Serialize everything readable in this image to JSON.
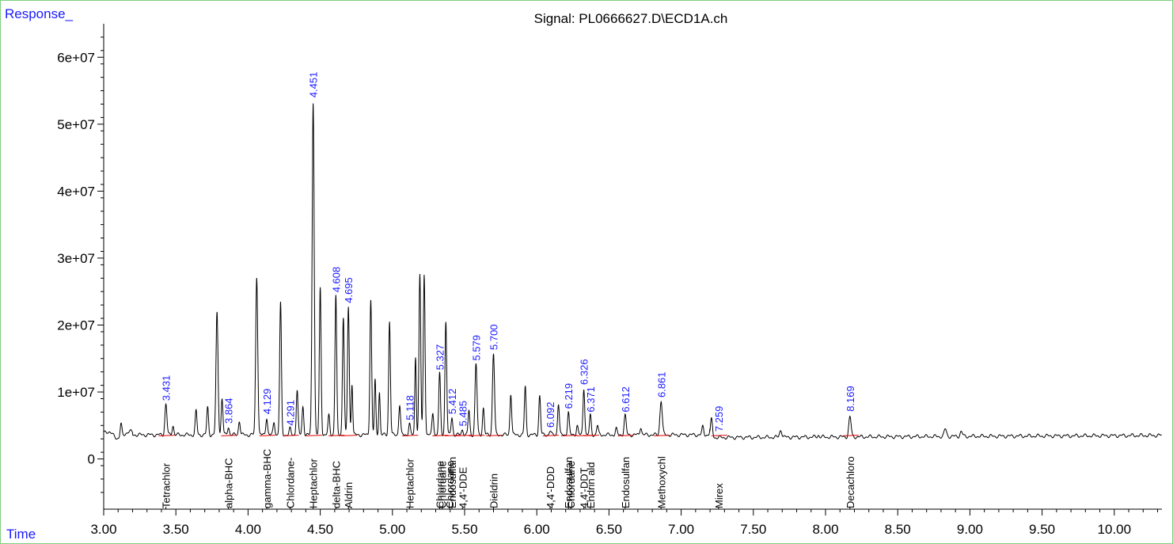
{
  "chart_data": {
    "type": "line",
    "title": "Signal: PL0666627.D\\ECD1A.ch",
    "ylabel": "Response_",
    "xlabel": "Time",
    "xlim": [
      3.0,
      10.33
    ],
    "ylim": [
      -7500000,
      65000000
    ],
    "x_ticks": [
      "3.00",
      "3.50",
      "4.00",
      "4.50",
      "5.00",
      "5.50",
      "6.00",
      "6.50",
      "7.00",
      "7.50",
      "8.00",
      "8.50",
      "9.00",
      "9.50",
      "10.00"
    ],
    "y_ticks": [
      "0",
      "1e+07",
      "2e+07",
      "3e+07",
      "4e+07",
      "5e+07",
      "6e+07"
    ],
    "baseline": 3600000,
    "peaks": [
      {
        "rt": 3.12,
        "h": 5600000,
        "w": 0.006
      },
      {
        "rt": 3.431,
        "h": 8200000,
        "w": 0.007
      },
      {
        "rt": 3.48,
        "h": 5000000,
        "w": 0.006
      },
      {
        "rt": 3.64,
        "h": 7200000,
        "w": 0.006
      },
      {
        "rt": 3.72,
        "h": 7700000,
        "w": 0.006
      },
      {
        "rt": 3.785,
        "h": 21800000,
        "w": 0.007
      },
      {
        "rt": 3.82,
        "h": 9000000,
        "w": 0.006
      },
      {
        "rt": 3.864,
        "h": 4800000,
        "w": 0.006
      },
      {
        "rt": 3.94,
        "h": 5700000,
        "w": 0.006
      },
      {
        "rt": 4.06,
        "h": 27300000,
        "w": 0.007
      },
      {
        "rt": 4.129,
        "h": 6200000,
        "w": 0.006
      },
      {
        "rt": 4.18,
        "h": 5500000,
        "w": 0.006
      },
      {
        "rt": 4.225,
        "h": 23300000,
        "w": 0.006
      },
      {
        "rt": 4.291,
        "h": 4500000,
        "w": 0.006
      },
      {
        "rt": 4.34,
        "h": 10300000,
        "w": 0.006
      },
      {
        "rt": 4.38,
        "h": 7800000,
        "w": 0.006
      },
      {
        "rt": 4.451,
        "h": 53500000,
        "w": 0.007
      },
      {
        "rt": 4.5,
        "h": 25500000,
        "w": 0.006
      },
      {
        "rt": 4.56,
        "h": 6500000,
        "w": 0.006
      },
      {
        "rt": 4.608,
        "h": 24400000,
        "w": 0.006
      },
      {
        "rt": 4.66,
        "h": 21300000,
        "w": 0.006
      },
      {
        "rt": 4.695,
        "h": 22800000,
        "w": 0.006
      },
      {
        "rt": 4.72,
        "h": 11300000,
        "w": 0.005
      },
      {
        "rt": 4.85,
        "h": 23900000,
        "w": 0.006
      },
      {
        "rt": 4.88,
        "h": 11800000,
        "w": 0.005
      },
      {
        "rt": 4.91,
        "h": 10000000,
        "w": 0.005
      },
      {
        "rt": 4.98,
        "h": 20600000,
        "w": 0.006
      },
      {
        "rt": 5.05,
        "h": 8100000,
        "w": 0.006
      },
      {
        "rt": 5.118,
        "h": 5300000,
        "w": 0.006
      },
      {
        "rt": 5.16,
        "h": 15300000,
        "w": 0.005
      },
      {
        "rt": 5.19,
        "h": 27500000,
        "w": 0.006
      },
      {
        "rt": 5.22,
        "h": 27600000,
        "w": 0.006
      },
      {
        "rt": 5.28,
        "h": 6800000,
        "w": 0.006
      },
      {
        "rt": 5.327,
        "h": 12800000,
        "w": 0.006
      },
      {
        "rt": 5.37,
        "h": 20600000,
        "w": 0.006
      },
      {
        "rt": 5.412,
        "h": 6200000,
        "w": 0.006
      },
      {
        "rt": 5.485,
        "h": 4400000,
        "w": 0.006
      },
      {
        "rt": 5.53,
        "h": 7200000,
        "w": 0.006
      },
      {
        "rt": 5.579,
        "h": 14200000,
        "w": 0.007
      },
      {
        "rt": 5.63,
        "h": 7600000,
        "w": 0.006
      },
      {
        "rt": 5.7,
        "h": 15800000,
        "w": 0.007
      },
      {
        "rt": 5.82,
        "h": 9800000,
        "w": 0.006
      },
      {
        "rt": 5.92,
        "h": 10800000,
        "w": 0.006
      },
      {
        "rt": 6.02,
        "h": 9500000,
        "w": 0.006
      },
      {
        "rt": 6.092,
        "h": 4200000,
        "w": 0.006
      },
      {
        "rt": 6.15,
        "h": 8300000,
        "w": 0.006
      },
      {
        "rt": 6.219,
        "h": 7000000,
        "w": 0.006
      },
      {
        "rt": 6.28,
        "h": 5000000,
        "w": 0.006
      },
      {
        "rt": 6.326,
        "h": 10600000,
        "w": 0.006
      },
      {
        "rt": 6.371,
        "h": 6500000,
        "w": 0.006
      },
      {
        "rt": 6.42,
        "h": 5000000,
        "w": 0.006
      },
      {
        "rt": 6.55,
        "h": 4500000,
        "w": 0.006
      },
      {
        "rt": 6.612,
        "h": 6500000,
        "w": 0.007
      },
      {
        "rt": 6.72,
        "h": 4800000,
        "w": 0.006
      },
      {
        "rt": 6.861,
        "h": 8700000,
        "w": 0.008
      },
      {
        "rt": 7.15,
        "h": 4800000,
        "w": 0.006
      },
      {
        "rt": 7.21,
        "h": 6300000,
        "w": 0.007
      },
      {
        "rt": 7.259,
        "h": 3600000,
        "w": 0.006
      },
      {
        "rt": 7.69,
        "h": 4700000,
        "w": 0.008
      },
      {
        "rt": 7.95,
        "h": 3900000,
        "w": 0.006
      },
      {
        "rt": 8.169,
        "h": 6600000,
        "w": 0.008
      },
      {
        "rt": 8.83,
        "h": 4700000,
        "w": 0.008
      },
      {
        "rt": 8.94,
        "h": 4300000,
        "w": 0.008
      }
    ],
    "rt_labels": [
      "3.431",
      "3.864",
      "4.129",
      "4.291",
      "4.451",
      "4.608",
      "4.695",
      "5.118",
      "5.327",
      "5.412",
      "5.485",
      "5.579",
      "5.700",
      "6.092",
      "6.219",
      "6.326",
      "6.371",
      "6.612",
      "6.861",
      "7.259",
      "8.169"
    ],
    "compounds": [
      {
        "name": "Tetrachlor",
        "rt": 3.431
      },
      {
        "name": "alpha-BHC",
        "rt": 3.864
      },
      {
        "name": "gamma-BHC",
        "rt": 4.129
      },
      {
        "name": "Chlordane-",
        "rt": 4.291
      },
      {
        "name": "Heptachlor",
        "rt": 4.451
      },
      {
        "name": "delta-BHC",
        "rt": 4.608
      },
      {
        "name": "Aldrin",
        "rt": 4.695
      },
      {
        "name": "Heptachlor",
        "rt": 5.118
      },
      {
        "name": "Chlordane",
        "rt": 5.327
      },
      {
        "name": "Chlordane",
        "rt": 5.345
      },
      {
        "name": "Endosulfan",
        "rt": 5.412
      },
      {
        "name": "Chlordane",
        "rt": 5.395
      },
      {
        "name": "4,4'-DDE",
        "rt": 5.485
      },
      {
        "name": "Dieldrin",
        "rt": 5.7
      },
      {
        "name": "4,4'-DDD",
        "rt": 6.092
      },
      {
        "name": "Endosulfan",
        "rt": 6.219
      },
      {
        "name": "Chlordane",
        "rt": 6.235
      },
      {
        "name": "4,4'-DDT",
        "rt": 6.326
      },
      {
        "name": "Endrin ald",
        "rt": 6.371
      },
      {
        "name": "Endosulfan",
        "rt": 6.612
      },
      {
        "name": "Methoxychl",
        "rt": 6.861
      },
      {
        "name": "Mirex",
        "rt": 7.259
      },
      {
        "name": "Decachloro",
        "rt": 8.169
      }
    ]
  }
}
